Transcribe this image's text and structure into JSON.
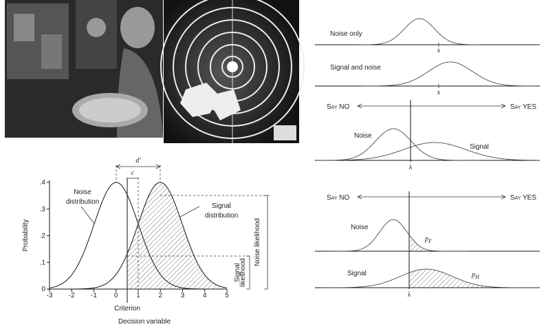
{
  "left_figure": {
    "d_prime": "d'",
    "c": "c",
    "noise_label": [
      "Noise",
      "distribution"
    ],
    "signal_label": [
      "Signal",
      "distribution"
    ],
    "y_label": "Probability",
    "y_ticks": [
      "0",
      ".1",
      ".2",
      ".3",
      ".4"
    ],
    "x_ticks": [
      "-3",
      "-2",
      "-1",
      "0",
      "1",
      "2",
      "3",
      "4",
      "5"
    ],
    "criterion": "Criterion",
    "x_label": "Decision variable",
    "signal_likelihood": [
      "Signal",
      "likelihood"
    ],
    "noise_likelihood": "Noise likelihood"
  },
  "top_right": {
    "rows": [
      {
        "label": "Noise only",
        "mean": "x"
      },
      {
        "label": "Signal and noise",
        "mean": "x"
      }
    ]
  },
  "middle_right": {
    "say_no": "Say NO",
    "say_yes": "Say YES",
    "noise": "Noise",
    "signal": "Signal",
    "criterion": "λ"
  },
  "bottom_right": {
    "say_no": "Say NO",
    "say_yes": "Say YES",
    "noise": "Noise",
    "signal": "Signal",
    "criterion": "λ",
    "false_alarm": {
      "symbol": "p",
      "subscript": "F"
    },
    "hit": {
      "symbol": "p",
      "subscript": "H"
    }
  }
}
